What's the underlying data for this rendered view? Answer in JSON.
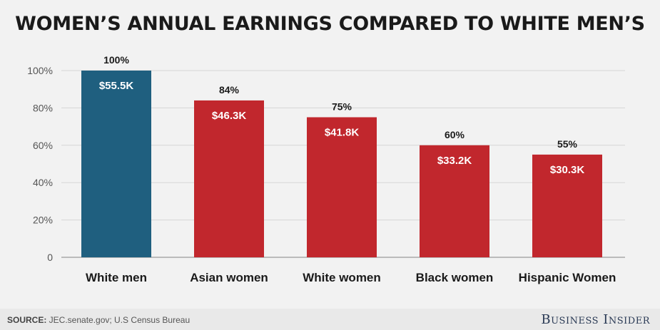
{
  "chart_data": {
    "type": "bar",
    "title": "WOMEN’S ANNUAL EARNINGS COMPARED TO WHITE MEN’S",
    "categories": [
      "White men",
      "Asian women",
      "White women",
      "Black women",
      "Hispanic Women"
    ],
    "values": [
      100,
      84,
      75,
      60,
      55
    ],
    "value_labels": [
      "100%",
      "84%",
      "75%",
      "60%",
      "55%"
    ],
    "earnings_labels": [
      "$55.5K",
      "$46.3K",
      "$41.8K",
      "$33.2K",
      "$30.3K"
    ],
    "yticks": [
      0,
      20,
      40,
      60,
      80,
      100
    ],
    "ytick_labels": [
      "0",
      "20%",
      "40%",
      "60%",
      "80%",
      "100%"
    ],
    "ylim": [
      0,
      100
    ],
    "xlabel": "",
    "ylabel": "",
    "grid": true,
    "colors": [
      "#1f5f7f",
      "#c1272d",
      "#c1272d",
      "#c1272d",
      "#c1272d"
    ]
  },
  "footer": {
    "source_label": "SOURCE:",
    "source_text": " JEC.senate.gov; U.S Census Bureau",
    "brand": "Business Insider"
  }
}
